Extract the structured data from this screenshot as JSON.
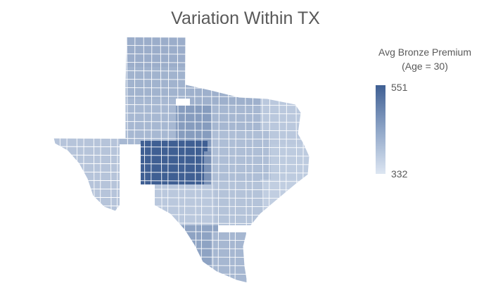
{
  "title": "Variation Within TX",
  "legend": {
    "title_line1": "Avg Bronze Premium",
    "title_line2": "(Age = 30)",
    "max_label": "551",
    "min_label": "332",
    "max_color": "#3f5f93",
    "mid_color": "#8ea5c7",
    "min_color": "#dde6f2"
  },
  "map": {
    "region": "TX",
    "regions": [
      {
        "name": "panhandle-north",
        "level": 0.42
      },
      {
        "name": "panhandle-south",
        "level": 0.38
      },
      {
        "name": "red-river",
        "level": 0.4
      },
      {
        "name": "dfw",
        "level": 0.35
      },
      {
        "name": "northeast",
        "level": 0.22
      },
      {
        "name": "east",
        "level": 0.2
      },
      {
        "name": "west-far",
        "level": 0.25
      },
      {
        "name": "permian",
        "level": 0.34
      },
      {
        "name": "central-west",
        "level": 0.55
      },
      {
        "name": "edwards-plateau",
        "level": 1.0
      },
      {
        "name": "hill-country",
        "level": 0.62
      },
      {
        "name": "central",
        "level": 0.3
      },
      {
        "name": "houston-gulf",
        "level": 0.18
      },
      {
        "name": "south-central",
        "level": 0.26
      },
      {
        "name": "south",
        "level": 0.22
      },
      {
        "name": "border",
        "level": 0.5
      },
      {
        "name": "rio-grande-valley",
        "level": 0.35
      }
    ]
  }
}
